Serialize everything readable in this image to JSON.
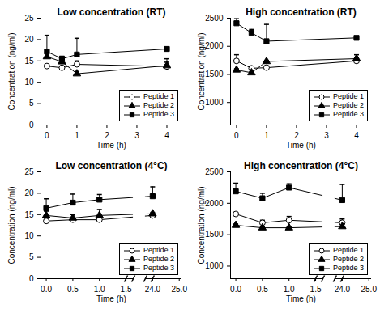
{
  "chart_data": [
    {
      "type": "line",
      "title": "Low concentration (RT)",
      "xlabel": "Time (h)",
      "ylabel": "Concentration (ng/ml)",
      "x": [
        0,
        0.5,
        1,
        4
      ],
      "xlim": [
        -0.2,
        4.5
      ],
      "xticks": [
        0,
        1,
        2,
        3,
        4
      ],
      "ylim": [
        0,
        25
      ],
      "yticks": [
        0,
        5,
        10,
        15,
        20,
        25
      ],
      "legend": "lower right",
      "series": [
        {
          "name": "Peptide 1",
          "color": "#000000",
          "marker": "circle-open",
          "values": [
            13.8,
            13.4,
            14.2,
            13.7
          ],
          "error": [
            0.4,
            0.3,
            0.8,
            1.0
          ]
        },
        {
          "name": "Peptide 2",
          "color": "#000000",
          "marker": "triangle",
          "values": [
            16.0,
            14.8,
            12.0,
            13.9
          ],
          "error": [
            0.8,
            0.6,
            0.5,
            1.6
          ]
        },
        {
          "name": "Peptide 3",
          "color": "#000000",
          "marker": "square",
          "values": [
            17.2,
            15.5,
            16.5,
            17.8
          ],
          "error": [
            3.8,
            0.6,
            3.8,
            0.3
          ]
        }
      ]
    },
    {
      "type": "line",
      "title": "High concentration (RT)",
      "xlabel": "Time (h)",
      "ylabel": "Concentration (ng/ml)",
      "x": [
        0,
        0.5,
        1,
        4
      ],
      "xlim": [
        -0.2,
        4.5
      ],
      "xticks": [
        0,
        1,
        2,
        3,
        4
      ],
      "ylim": [
        600,
        2500
      ],
      "yticks": [
        1000,
        1500,
        2000,
        2500
      ],
      "legend": "lower right",
      "series": [
        {
          "name": "Peptide 1",
          "color": "#000000",
          "marker": "circle-open",
          "values": [
            1740,
            1610,
            1620,
            1740
          ],
          "error": [
            110,
            30,
            30,
            50
          ]
        },
        {
          "name": "Peptide 2",
          "color": "#000000",
          "marker": "triangle",
          "values": [
            1580,
            1530,
            1730,
            1780
          ],
          "error": [
            20,
            20,
            20,
            70
          ]
        },
        {
          "name": "Peptide 3",
          "color": "#000000",
          "marker": "square",
          "values": [
            2410,
            2240,
            2090,
            2150
          ],
          "error": [
            80,
            60,
            300,
            20
          ]
        }
      ]
    },
    {
      "type": "line",
      "title": "Low concentration (4°C)",
      "xlabel": "Time (h)",
      "ylabel": "Concentration (ng/ml)",
      "x": [
        0,
        0.5,
        1,
        24
      ],
      "xlim": [
        -0.1,
        25.1
      ],
      "xticks": [
        {
          "value": 0,
          "label": "0.0"
        },
        0.5,
        {
          "value": 1,
          "label": "1.0"
        },
        1.5,
        {
          "value": 24,
          "label": "24.0"
        },
        {
          "value": 25,
          "label": "25.0"
        }
      ],
      "ylim": [
        0,
        25
      ],
      "yticks": [
        0,
        5,
        10,
        15,
        20,
        25
      ],
      "legend": "lower right",
      "series": [
        {
          "name": "Peptide 1",
          "color": "#000000",
          "marker": "circle-open",
          "values": [
            13.5,
            13.8,
            13.8,
            14.8
          ],
          "error": [
            0.3,
            0.4,
            0.5,
            0.3
          ]
        },
        {
          "name": "Peptide 2",
          "color": "#000000",
          "marker": "triangle",
          "values": [
            14.8,
            14.2,
            14.8,
            15.2
          ],
          "error": [
            1.0,
            0.8,
            1.4,
            0.3
          ]
        },
        {
          "name": "Peptide 3",
          "color": "#000000",
          "marker": "square",
          "values": [
            16.5,
            17.8,
            18.5,
            19.3
          ],
          "error": [
            2.2,
            2.0,
            1.2,
            2.2
          ]
        }
      ]
    },
    {
      "type": "line",
      "title": "High concentration (4°C)",
      "xlabel": "Time (h)",
      "ylabel": "Concentration (ng/ml)",
      "x": [
        0,
        0.5,
        1,
        24
      ],
      "xlim": [
        -0.1,
        25.1
      ],
      "xticks": [
        {
          "value": 0,
          "label": "0.0"
        },
        0.5,
        {
          "value": 1,
          "label": "1.0"
        },
        1.5,
        {
          "value": 24,
          "label": "24.0"
        },
        {
          "value": 25,
          "label": "25.0"
        }
      ],
      "ylim": [
        800,
        2500
      ],
      "yticks": [
        1000,
        1500,
        2000,
        2500
      ],
      "legend": "lower right",
      "series": [
        {
          "name": "Peptide 1",
          "color": "#000000",
          "marker": "circle-open",
          "values": [
            1830,
            1690,
            1730,
            1690
          ],
          "error": [
            20,
            40,
            60,
            60
          ]
        },
        {
          "name": "Peptide 2",
          "color": "#000000",
          "marker": "triangle",
          "values": [
            1650,
            1610,
            1610,
            1630
          ],
          "error": [
            20,
            20,
            20,
            40
          ]
        },
        {
          "name": "Peptide 3",
          "color": "#000000",
          "marker": "square",
          "values": [
            2190,
            2080,
            2250,
            2050
          ],
          "error": [
            130,
            80,
            60,
            250
          ]
        }
      ]
    }
  ]
}
